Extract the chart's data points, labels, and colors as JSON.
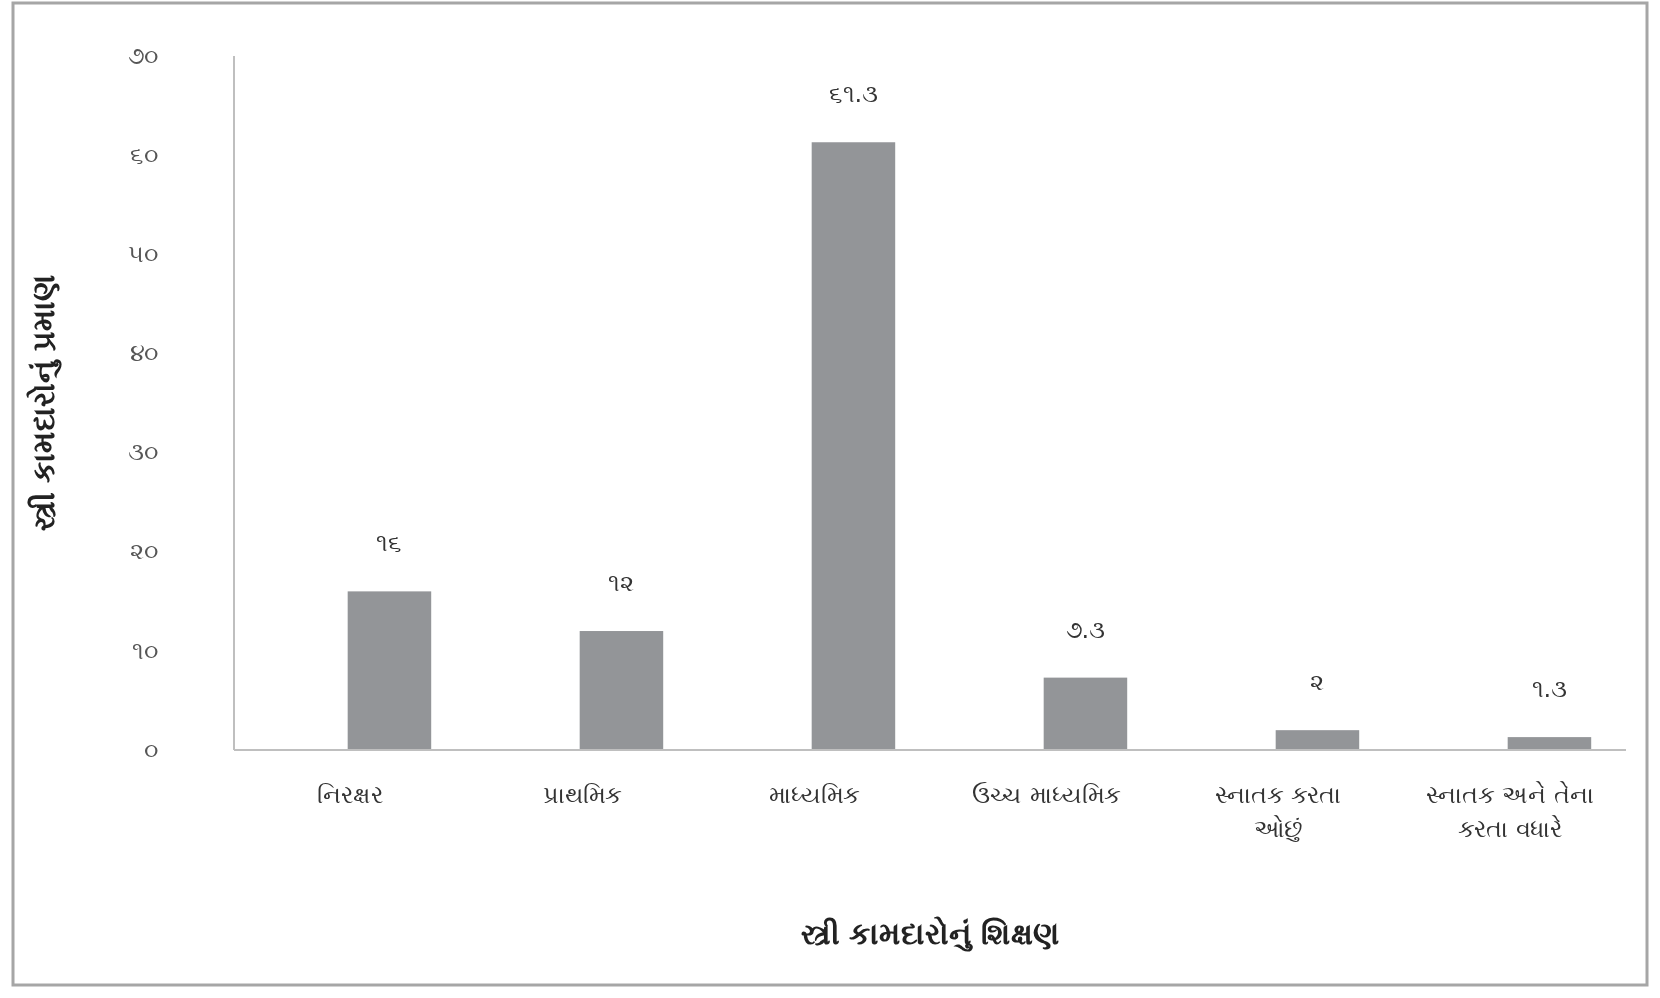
{
  "chart_data": {
    "type": "bar",
    "xlabel": "સ્ત્રી કામદારોનું શિક્ષણ",
    "ylabel": "સ્ત્રી કામદારોનું પ્રમાણ",
    "categories": [
      "નિરક્ષર",
      "પ્રાથમિક",
      "માધ્યમિક",
      "ઉચ્ચ માધ્યમિક",
      "સ્નાતક કરતા ઓછું",
      "સ્નાતક અને તેના કરતા વધારે"
    ],
    "values": [
      16,
      12,
      61.3,
      7.3,
      2,
      1.3
    ],
    "value_labels": [
      "૧૬",
      "૧૨",
      "૬૧.૩",
      "૭.૩",
      "૨",
      "૧.૩"
    ],
    "color": "#939598",
    "ylim": [
      0,
      70
    ],
    "yticks": [
      {
        "value": 0,
        "label": "૦"
      },
      {
        "value": 10,
        "label": "૧૦"
      },
      {
        "value": 20,
        "label": "૨૦"
      },
      {
        "value": 30,
        "label": "૩૦"
      },
      {
        "value": 40,
        "label": "૪૦"
      },
      {
        "value": 50,
        "label": "૫૦"
      },
      {
        "value": 60,
        "label": "૬૦"
      },
      {
        "value": 70,
        "label": "૭૦"
      }
    ]
  }
}
